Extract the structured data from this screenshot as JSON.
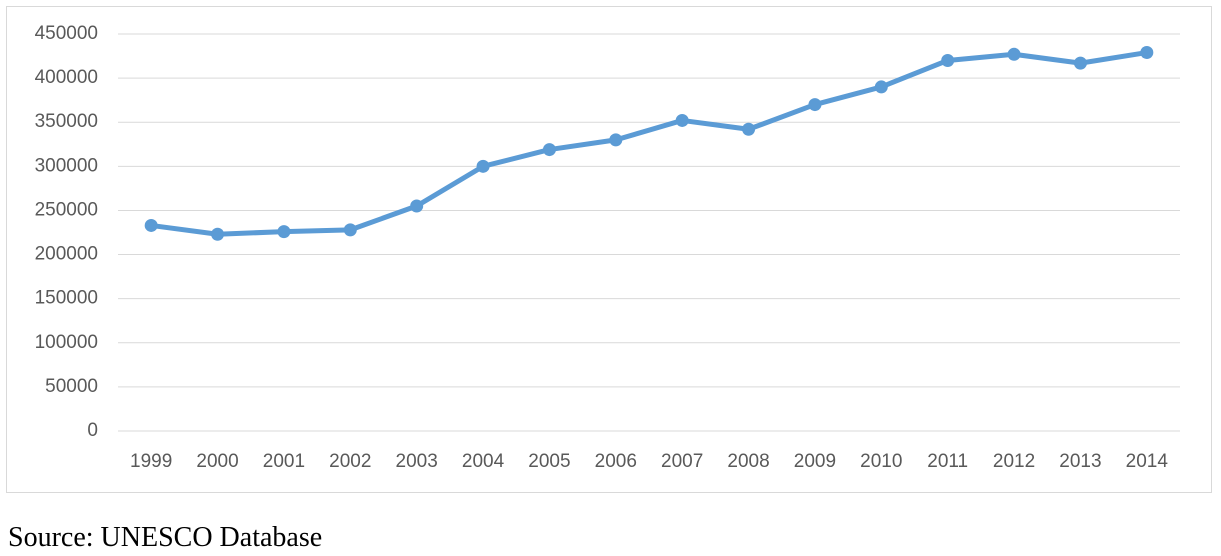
{
  "chart_data": {
    "type": "line",
    "categories": [
      "1999",
      "2000",
      "2001",
      "2002",
      "2003",
      "2004",
      "2005",
      "2006",
      "2007",
      "2008",
      "2009",
      "2010",
      "2011",
      "2012",
      "2013",
      "2014"
    ],
    "values": [
      233000,
      223000,
      226000,
      228000,
      255000,
      300000,
      319000,
      330000,
      352000,
      342000,
      370000,
      390000,
      420000,
      427000,
      417000,
      429000
    ],
    "color": "#5b9bd5",
    "ylim": [
      0,
      450000
    ],
    "yticks": [
      0,
      50000,
      100000,
      150000,
      200000,
      250000,
      300000,
      350000,
      400000,
      450000
    ],
    "grid": true
  },
  "source": "Source: UNESCO Database"
}
